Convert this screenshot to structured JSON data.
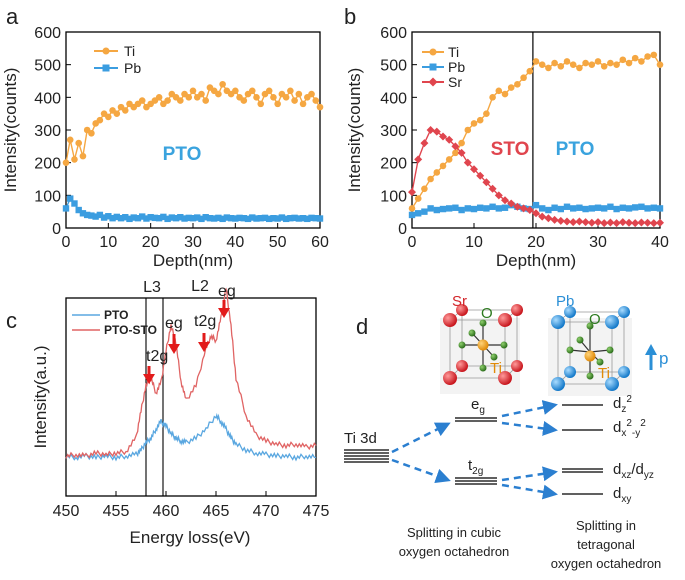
{
  "panels": {
    "a": {
      "label": "a",
      "inset_text": "PTO",
      "legend": [
        "Ti",
        "Pb"
      ]
    },
    "b": {
      "label": "b",
      "region_labels": [
        "STO",
        "PTO"
      ],
      "legend": [
        "Ti",
        "Pb",
        "Sr"
      ]
    },
    "c": {
      "label": "c",
      "legend": [
        "PTO",
        "PTO-STO"
      ],
      "edge_labels": [
        "L3",
        "L2"
      ],
      "peak_labels": [
        "t2g",
        "eg",
        "t2g",
        "eg"
      ]
    },
    "d": {
      "label": "d",
      "crystal_labels": {
        "left": [
          "Sr",
          "O",
          "Ti"
        ],
        "right": [
          "Pb",
          "O",
          "Ti"
        ],
        "polarization": "p"
      },
      "levels": {
        "start": "Ti 3d",
        "cubic": [
          "eg",
          "t2g"
        ],
        "tetragonal": [
          "dz2",
          "dx2-y2",
          "dxz/dyz",
          "dxy"
        ]
      },
      "captions": {
        "cubic": "Splitting in cubic oxygen octahedron",
        "tetragonal": "Splitting in tetragonal oxygen octahedron"
      }
    }
  },
  "chart_data": [
    {
      "panel": "a",
      "type": "scatter",
      "xlabel": "Depth(nm)",
      "ylabel": "Intensity(counts)",
      "xlim": [
        0,
        60
      ],
      "ylim": [
        0,
        600
      ],
      "xticks": [
        0,
        10,
        20,
        30,
        40,
        50,
        60
      ],
      "yticks": [
        0,
        100,
        200,
        300,
        400,
        500,
        600
      ],
      "series": [
        {
          "name": "Ti",
          "color": "#f5a742",
          "marker": "circle",
          "x": [
            0,
            1,
            2,
            3,
            4,
            5,
            6,
            7,
            8,
            9,
            10,
            11,
            12,
            13,
            14,
            15,
            16,
            17,
            18,
            19,
            20,
            21,
            22,
            23,
            24,
            25,
            26,
            27,
            28,
            29,
            30,
            31,
            32,
            33,
            34,
            35,
            36,
            37,
            38,
            39,
            40,
            41,
            42,
            43,
            44,
            45,
            46,
            47,
            48,
            49,
            50,
            51,
            52,
            53,
            54,
            55,
            56,
            57,
            58,
            59,
            60
          ],
          "y": [
            200,
            270,
            210,
            260,
            220,
            300,
            290,
            320,
            330,
            350,
            340,
            360,
            350,
            370,
            360,
            380,
            370,
            380,
            390,
            370,
            380,
            390,
            400,
            380,
            390,
            410,
            400,
            390,
            410,
            400,
            420,
            400,
            410,
            390,
            430,
            420,
            410,
            440,
            420,
            410,
            420,
            400,
            390,
            410,
            420,
            400,
            380,
            410,
            420,
            400,
            380,
            410,
            400,
            420,
            390,
            410,
            380,
            400,
            410,
            390,
            370
          ]
        },
        {
          "name": "Pb",
          "color": "#3b9de0",
          "marker": "square",
          "x": [
            0,
            1,
            2,
            3,
            4,
            5,
            6,
            7,
            8,
            9,
            10,
            11,
            12,
            13,
            14,
            15,
            16,
            17,
            18,
            19,
            20,
            21,
            22,
            23,
            24,
            25,
            26,
            27,
            28,
            29,
            30,
            31,
            32,
            33,
            34,
            35,
            36,
            37,
            38,
            39,
            40,
            41,
            42,
            43,
            44,
            45,
            46,
            47,
            48,
            49,
            50,
            51,
            52,
            53,
            54,
            55,
            56,
            57,
            58,
            59,
            60
          ],
          "y": [
            60,
            90,
            75,
            55,
            45,
            40,
            38,
            35,
            40,
            32,
            36,
            30,
            34,
            30,
            33,
            28,
            32,
            30,
            35,
            29,
            33,
            31,
            30,
            34,
            28,
            32,
            30,
            33,
            29,
            31,
            30,
            32,
            28,
            33,
            30,
            29,
            31,
            28,
            32,
            30,
            29,
            31,
            30,
            28,
            32,
            29,
            30,
            31,
            28,
            30,
            29,
            32,
            28,
            30,
            31,
            29,
            30,
            28,
            31,
            30,
            29
          ]
        }
      ]
    },
    {
      "panel": "b",
      "type": "scatter",
      "xlabel": "Depth(nm)",
      "ylabel": "Intensity(counts)",
      "xlim": [
        0,
        40
      ],
      "ylim": [
        0,
        600
      ],
      "xticks": [
        0,
        10,
        20,
        30,
        40
      ],
      "yticks": [
        0,
        100,
        200,
        300,
        400,
        500,
        600
      ],
      "interface_x": 19.5,
      "series": [
        {
          "name": "Ti",
          "color": "#f5a742",
          "marker": "circle",
          "x": [
            0,
            1,
            2,
            3,
            4,
            5,
            6,
            7,
            8,
            9,
            10,
            11,
            12,
            13,
            14,
            15,
            16,
            17,
            18,
            19,
            20,
            21,
            22,
            23,
            24,
            25,
            26,
            27,
            28,
            29,
            30,
            31,
            32,
            33,
            34,
            35,
            36,
            37,
            38,
            39,
            40
          ],
          "y": [
            60,
            90,
            120,
            150,
            170,
            190,
            210,
            230,
            260,
            300,
            320,
            330,
            350,
            400,
            420,
            410,
            430,
            440,
            460,
            480,
            510,
            500,
            490,
            505,
            495,
            510,
            500,
            490,
            505,
            500,
            510,
            495,
            505,
            500,
            515,
            505,
            520,
            510,
            525,
            530,
            500
          ]
        },
        {
          "name": "Pb",
          "color": "#3b9de0",
          "marker": "square",
          "x": [
            0,
            1,
            2,
            3,
            4,
            5,
            6,
            7,
            8,
            9,
            10,
            11,
            12,
            13,
            14,
            15,
            16,
            17,
            18,
            19,
            20,
            21,
            22,
            23,
            24,
            25,
            26,
            27,
            28,
            29,
            30,
            31,
            32,
            33,
            34,
            35,
            36,
            37,
            38,
            39,
            40
          ],
          "y": [
            40,
            45,
            50,
            60,
            55,
            58,
            60,
            62,
            55,
            60,
            58,
            62,
            60,
            65,
            60,
            62,
            70,
            65,
            60,
            58,
            70,
            60,
            55,
            62,
            58,
            65,
            60,
            62,
            58,
            60,
            62,
            60,
            65,
            58,
            62,
            60,
            63,
            65,
            60,
            62,
            60
          ]
        },
        {
          "name": "Sr",
          "color": "#e0454e",
          "marker": "diamond",
          "x": [
            0,
            1,
            2,
            3,
            4,
            5,
            6,
            7,
            8,
            9,
            10,
            11,
            12,
            13,
            14,
            15,
            16,
            17,
            18,
            19,
            20,
            21,
            22,
            23,
            24,
            25,
            26,
            27,
            28,
            29,
            30,
            31,
            32,
            33,
            34,
            35,
            36,
            37,
            38,
            39,
            40
          ],
          "y": [
            110,
            210,
            260,
            300,
            295,
            280,
            270,
            250,
            230,
            200,
            180,
            160,
            140,
            120,
            100,
            85,
            75,
            65,
            60,
            55,
            45,
            35,
            30,
            25,
            22,
            20,
            18,
            20,
            18,
            16,
            18,
            15,
            17,
            15,
            18,
            16,
            15,
            17,
            16,
            15,
            16
          ]
        }
      ]
    },
    {
      "panel": "c",
      "type": "line",
      "xlabel": "Energy loss(eV)",
      "ylabel": "Intensity(a.u.)",
      "xlim": [
        450,
        475
      ],
      "xticks": [
        450,
        455,
        460,
        465,
        470,
        475
      ],
      "vlines": [
        458.0,
        459.7
      ],
      "series": [
        {
          "name": "PTO",
          "color": "#5aa7e0",
          "x": [
            450,
            451,
            452,
            453,
            454,
            455,
            456,
            457,
            457.5,
            458,
            458.5,
            459,
            459.5,
            460,
            460.5,
            461,
            461.5,
            462,
            463,
            464,
            465,
            465.5,
            466,
            466.5,
            467,
            468,
            469,
            470,
            471,
            472,
            473,
            474,
            475
          ],
          "y": [
            0.08,
            0.07,
            0.08,
            0.07,
            0.08,
            0.07,
            0.08,
            0.09,
            0.12,
            0.17,
            0.2,
            0.26,
            0.31,
            0.28,
            0.23,
            0.2,
            0.18,
            0.17,
            0.2,
            0.26,
            0.35,
            0.31,
            0.26,
            0.2,
            0.16,
            0.12,
            0.1,
            0.09,
            0.08,
            0.08,
            0.07,
            0.08,
            0.07
          ]
        },
        {
          "name": "PTO-STO",
          "color": "#e06464",
          "x": [
            450,
            451,
            452,
            453,
            454,
            455,
            456,
            457,
            457.5,
            458,
            458.5,
            459,
            459.5,
            460,
            460.5,
            461,
            461.5,
            462,
            463,
            464,
            464.5,
            465,
            465.5,
            466,
            466.5,
            467,
            468,
            469,
            470,
            471,
            472,
            473,
            474,
            475
          ],
          "y": [
            0.08,
            0.09,
            0.08,
            0.1,
            0.09,
            0.1,
            0.11,
            0.2,
            0.38,
            0.55,
            0.6,
            0.5,
            0.57,
            0.78,
            0.95,
            0.83,
            0.58,
            0.45,
            0.55,
            0.8,
            0.88,
            0.85,
            1.0,
            1.2,
            0.95,
            0.6,
            0.35,
            0.22,
            0.18,
            0.16,
            0.15,
            0.16,
            0.14,
            0.15
          ]
        }
      ]
    }
  ]
}
